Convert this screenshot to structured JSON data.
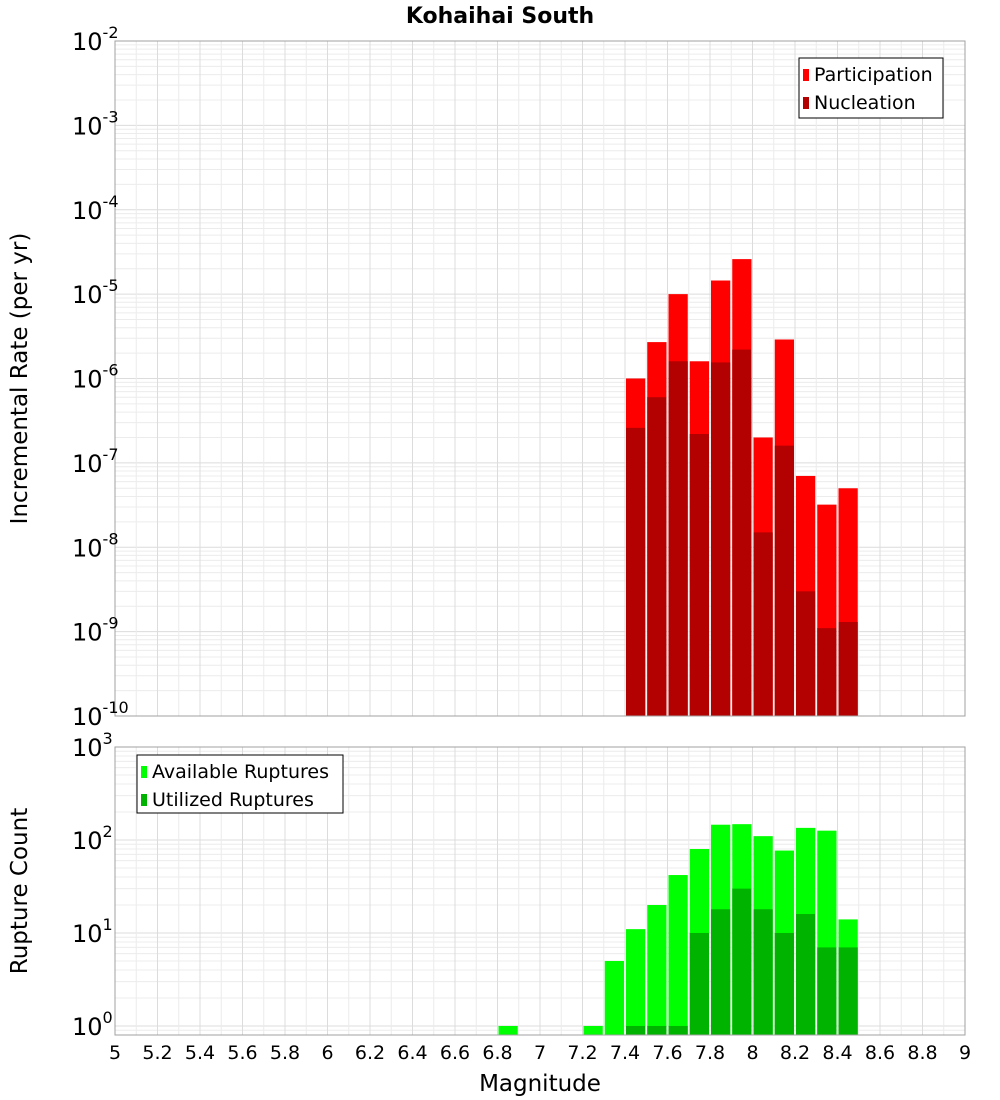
{
  "title": "Kohaihai South",
  "chart_data": [
    {
      "type": "bar",
      "name": "rate-panel",
      "ylabel": "Incremental Rate (per yr)",
      "yscale": "log",
      "ylim": [
        1e-10,
        0.01
      ],
      "ytick_exponents": [
        -10,
        -9,
        -8,
        -7,
        -6,
        -5,
        -4,
        -3,
        -2
      ],
      "xlim": [
        5,
        9
      ],
      "bin_width": 0.1,
      "grid": true,
      "legend_position": "top-right",
      "x": [
        7.45,
        7.55,
        7.65,
        7.75,
        7.85,
        7.95,
        8.05,
        8.15,
        8.25,
        8.35,
        8.45
      ],
      "series": [
        {
          "name": "Participation",
          "color": "#ff0000",
          "values": [
            1e-06,
            2.7e-06,
            1e-05,
            1.6e-06,
            1.45e-05,
            2.6e-05,
            2e-07,
            2.9e-06,
            7e-08,
            3.2e-08,
            5e-08
          ]
        },
        {
          "name": "Nucleation",
          "color": "#b30000",
          "values": [
            2.6e-07,
            6e-07,
            1.6e-06,
            2.2e-07,
            1.55e-06,
            2.2e-06,
            1.5e-08,
            1.6e-07,
            3e-09,
            1.1e-09,
            1.3e-09
          ]
        }
      ]
    },
    {
      "type": "bar",
      "name": "count-panel",
      "ylabel": "Rupture Count",
      "yscale": "log",
      "ylim": [
        0.8,
        1000
      ],
      "ytick_exponents": [
        0,
        1,
        2,
        3
      ],
      "xlim": [
        5,
        9
      ],
      "bin_width": 0.1,
      "grid": true,
      "legend_position": "top-left",
      "xlabel": "Magnitude",
      "xticks": [
        "5",
        "5.2",
        "5.4",
        "5.6",
        "5.8",
        "6",
        "6.2",
        "6.4",
        "6.6",
        "6.8",
        "7",
        "7.2",
        "7.4",
        "7.6",
        "7.8",
        "8",
        "8.2",
        "8.4",
        "8.6",
        "8.8",
        "9"
      ],
      "x": [
        6.85,
        7.25,
        7.35,
        7.45,
        7.55,
        7.65,
        7.75,
        7.85,
        7.95,
        8.05,
        8.15,
        8.25,
        8.35,
        8.45
      ],
      "series": [
        {
          "name": "Available Ruptures",
          "color": "#00ff00",
          "values": [
            1,
            1,
            5,
            11,
            20,
            42,
            80,
            146,
            148,
            110,
            77,
            135,
            126,
            14
          ]
        },
        {
          "name": "Utilized Ruptures",
          "color": "#00b300",
          "values": [
            0,
            0,
            0,
            1,
            1,
            1,
            10,
            18,
            30,
            18,
            10,
            16,
            7,
            7
          ]
        }
      ]
    }
  ]
}
